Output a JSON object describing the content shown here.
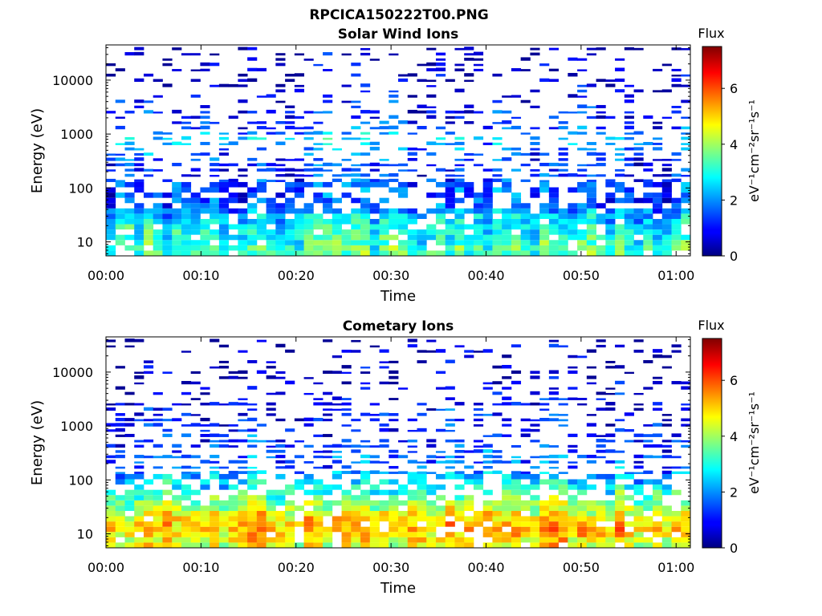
{
  "figure_title": "RPCICA150222T00.PNG",
  "chart_data": [
    {
      "type": "heatmap",
      "title": "Solar Wind Ions",
      "xlabel": "Time",
      "ylabel": "Energy (eV)",
      "x_ticks": [
        "00:00",
        "00:10",
        "00:20",
        "00:30",
        "00:40",
        "00:50",
        "01:00"
      ],
      "x_range_minutes": [
        0,
        61.5
      ],
      "y_scale": "log",
      "y_range_eV": [
        5.5,
        45000
      ],
      "y_ticks": [
        "10",
        "100",
        "1000",
        "10000"
      ],
      "colorbar": {
        "title": "Flux",
        "label": "eV⁻¹cm⁻²sr⁻¹s⁻¹",
        "range": [
          0,
          7.5
        ],
        "ticks": [
          "0",
          "2",
          "4",
          "6"
        ],
        "colormap": "jet"
      },
      "approx_flux_by_energy_band": [
        {
          "energy_eV": 7,
          "flux": 3.4
        },
        {
          "energy_eV": 11,
          "flux": 3.0
        },
        {
          "energy_eV": 18,
          "flux": 2.8
        },
        {
          "energy_eV": 28,
          "flux": 2.4
        },
        {
          "energy_eV": 60,
          "flux": 1.3
        },
        {
          "energy_eV": 110,
          "flux": 1.6
        },
        {
          "energy_eV": 200,
          "flux": 1.1
        },
        {
          "energy_eV": 500,
          "flux": 1.6
        },
        {
          "energy_eV": 900,
          "flux": 2.6
        },
        {
          "energy_eV": 1500,
          "flux": 1.2
        },
        {
          "energy_eV": 3000,
          "flux": 1.0
        },
        {
          "energy_eV": 10000,
          "flux": 0.5
        },
        {
          "energy_eV": 30000,
          "flux": 0.4
        }
      ],
      "grid": false
    },
    {
      "type": "heatmap",
      "title": "Cometary Ions",
      "xlabel": "Time",
      "ylabel": "Energy (eV)",
      "x_ticks": [
        "00:00",
        "00:10",
        "00:20",
        "00:30",
        "00:40",
        "00:50",
        "01:00"
      ],
      "x_range_minutes": [
        0,
        61.5
      ],
      "y_scale": "log",
      "y_range_eV": [
        5.5,
        45000
      ],
      "y_ticks": [
        "10",
        "100",
        "1000",
        "10000"
      ],
      "colorbar": {
        "title": "Flux",
        "label": "eV⁻¹cm⁻²sr⁻¹s⁻¹",
        "range": [
          0,
          7.5
        ],
        "ticks": [
          "0",
          "2",
          "4",
          "6"
        ],
        "colormap": "jet"
      },
      "approx_flux_by_energy_band": [
        {
          "energy_eV": 7,
          "flux": 4.6
        },
        {
          "energy_eV": 11,
          "flux": 5.2
        },
        {
          "energy_eV": 18,
          "flux": 5.0
        },
        {
          "energy_eV": 28,
          "flux": 4.2
        },
        {
          "energy_eV": 50,
          "flux": 3.4
        },
        {
          "energy_eV": 90,
          "flux": 2.6
        },
        {
          "energy_eV": 160,
          "flux": 1.8
        },
        {
          "energy_eV": 700,
          "flux": 1.2
        },
        {
          "energy_eV": 2000,
          "flux": 1.0
        },
        {
          "energy_eV": 10000,
          "flux": 0.4
        }
      ],
      "grid": false
    }
  ]
}
